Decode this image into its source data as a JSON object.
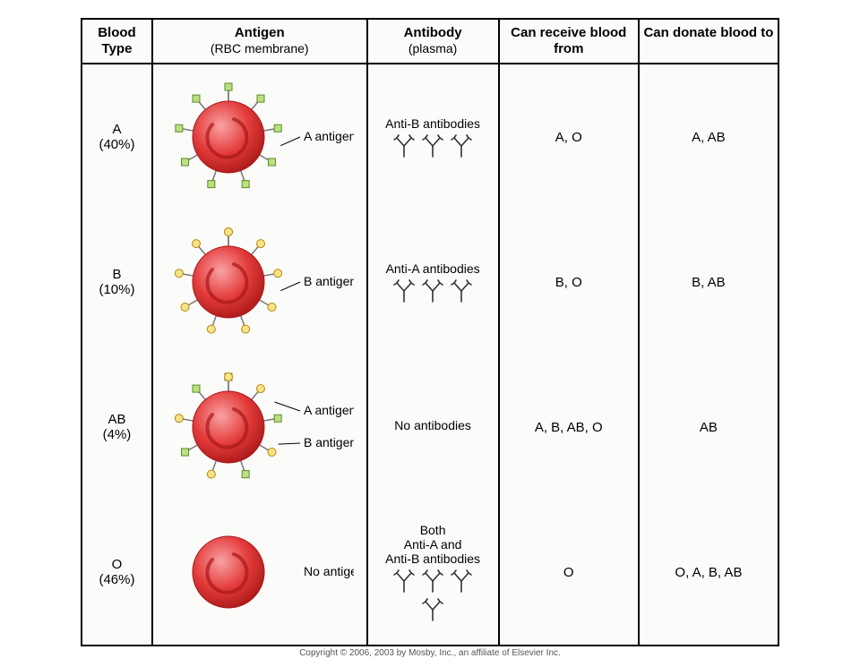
{
  "colors": {
    "cell_fill": "#e43b3b",
    "cell_highlight": "#f9a3a3",
    "cell_shadow": "#a81818",
    "antigen_a_fill": "#b7e27f",
    "antigen_a_stroke": "#5e8a2a",
    "antigen_b_fill": "#f6e28a",
    "antigen_b_stroke": "#b68900",
    "antibody_stroke": "#333333",
    "border": "#000000",
    "background": "#fbfbfa"
  },
  "headers": {
    "type": "Blood Type",
    "antigen": "Antigen",
    "antigen_sub": "(RBC membrane)",
    "antibody": "Antibody",
    "antibody_sub": "(plasma)",
    "receive": "Can receive blood from",
    "donate": "Can donate blood to"
  },
  "rows": [
    {
      "name": "A",
      "pct": "(40%)",
      "antigen_labels": [
        "A antigen"
      ],
      "antigen_markers": {
        "a": true,
        "b": false
      },
      "antibody_label": "Anti-B antibodies",
      "antibody_count": 3,
      "receive": "A, O",
      "donate": "A, AB"
    },
    {
      "name": "B",
      "pct": "(10%)",
      "antigen_labels": [
        "B antigen"
      ],
      "antigen_markers": {
        "a": false,
        "b": true
      },
      "antibody_label": "Anti-A antibodies",
      "antibody_count": 3,
      "receive": "B, O",
      "donate": "B, AB"
    },
    {
      "name": "AB",
      "pct": "(4%)",
      "antigen_labels": [
        "A antigen",
        "B antigen"
      ],
      "antigen_markers": {
        "a": true,
        "b": true
      },
      "antibody_label": "No antibodies",
      "antibody_count": 0,
      "receive": "A, B, AB, O",
      "donate": "AB"
    },
    {
      "name": "O",
      "pct": "(46%)",
      "antigen_labels": [
        "No antigen"
      ],
      "antigen_markers": {
        "a": false,
        "b": false
      },
      "antibody_label": "Both Anti-A and Anti-B antibodies",
      "antibody_count": 4,
      "receive": "O",
      "donate": "O, A, B, AB"
    }
  ],
  "copyright": "Copyright © 2006, 2003 by Mosby, Inc., an affiliate of Elsevier Inc."
}
